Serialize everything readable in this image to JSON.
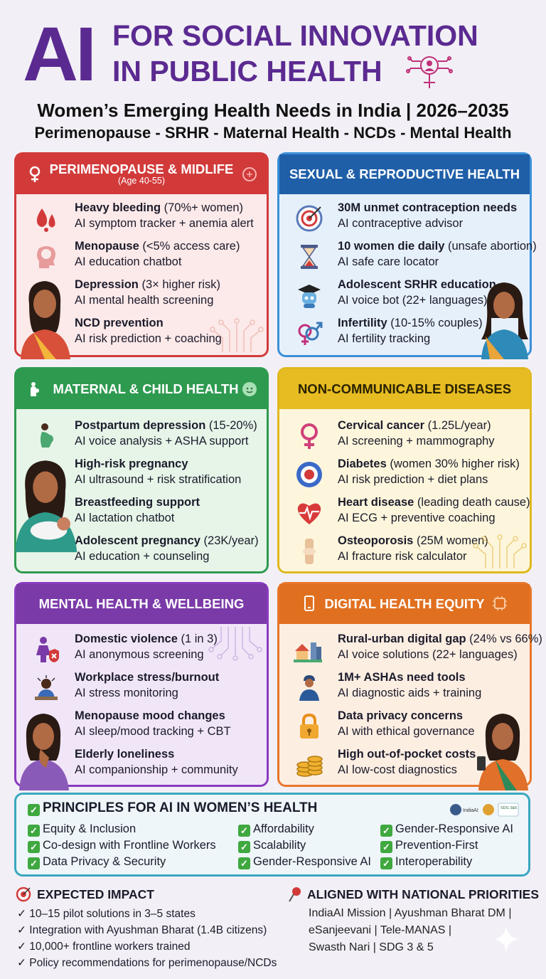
{
  "header": {
    "ai": "AI",
    "line1": "FOR SOCIAL INNOVATION",
    "line2": "IN PUBLIC HEALTH",
    "subtitle": "Women’s Emerging Health Needs in India | 2026–2035",
    "topics": "Perimenopause - SRHR - Maternal Health - NCDs - Mental Health"
  },
  "colors": {
    "purple": "#5b2a91",
    "red": "#d23a3a",
    "blue": "#1f5fa8",
    "green": "#2e9a50",
    "yellow": "#e0b81e",
    "violet": "#7a3aa8",
    "orange": "#e07020",
    "teal": "#3aa7bf"
  },
  "cards": {
    "perimenopause": {
      "title": "PERIMENOPAUSE & MIDLIFE",
      "subtitle": "(Age 40-55)",
      "items": [
        {
          "icon": "blood-drops-icon",
          "bold": "Heavy bleeding",
          "rest": " (70%+ women)",
          "ai": "AI symptom tracker + anemia alert"
        },
        {
          "icon": "head-brain-icon",
          "bold": "Menopause",
          "rest": " (<5% access care)",
          "ai": "AI education chatbot"
        },
        {
          "icon": "woman-icon",
          "bold": "Depression",
          "rest": " (3× higher risk)",
          "ai": "AI mental health screening"
        },
        {
          "icon": "woman-icon",
          "bold": "NCD prevention",
          "rest": "",
          "ai": "AI risk prediction + coaching"
        }
      ]
    },
    "srh": {
      "title": "SEXUAL & REPRODUCTIVE HEALTH",
      "items": [
        {
          "icon": "target-icon",
          "bold": "30M unmet contraception needs",
          "rest": "",
          "ai": "AI contraceptive advisor"
        },
        {
          "icon": "hourglass-icon",
          "bold": "10 women die daily",
          "rest": " (unsafe abortion)",
          "ai": "AI safe care locator"
        },
        {
          "icon": "graduate-robot-icon",
          "bold": "Adolescent SRHR education",
          "rest": "",
          "ai": "AI voice bot (22+ languages)"
        },
        {
          "icon": "gender-symbols-icon",
          "bold": "Infertility",
          "rest": " (10-15% couples)",
          "ai": "AI fertility tracking"
        }
      ]
    },
    "maternal": {
      "title": "MATERNAL & CHILD HEALTH",
      "items": [
        {
          "icon": "pregnant-woman-icon",
          "bold": "Postpartum depression",
          "rest": " (15-20%)",
          "ai": "AI voice analysis + ASHA support"
        },
        {
          "icon": "mother-child-icon",
          "bold": "High-risk pregnancy",
          "rest": "",
          "ai": "AI ultrasound + risk stratification"
        },
        {
          "icon": "mother-child-icon",
          "bold": "Breastfeeding support",
          "rest": "",
          "ai": "AI lactation chatbot"
        },
        {
          "icon": "mother-child-icon",
          "bold": "Adolescent pregnancy",
          "rest": " (23K/year)",
          "ai": "AI education + counseling"
        }
      ]
    },
    "ncd": {
      "title": "NON-COMMUNICABLE DISEASES",
      "items": [
        {
          "icon": "female-symbol-icon",
          "bold": "Cervical cancer",
          "rest": " (1.25L/year)",
          "ai": "AI screening + mammography"
        },
        {
          "icon": "diabetes-icon",
          "bold": "Diabetes",
          "rest": " (women 30% higher risk)",
          "ai": "AI risk prediction + diet plans"
        },
        {
          "icon": "heart-ecg-icon",
          "bold": "Heart disease",
          "rest": " (leading death cause)",
          "ai": "AI ECG + preventive coaching"
        },
        {
          "icon": "knee-bone-icon",
          "bold": "Osteoporosis",
          "rest": " (25M women)",
          "ai": "AI fracture risk calculator"
        }
      ]
    },
    "mental": {
      "title": "MENTAL HEALTH & WELLBEING",
      "items": [
        {
          "icon": "woman-shield-icon",
          "bold": "Domestic violence",
          "rest": " (1 in 3)",
          "ai": "AI anonymous screening"
        },
        {
          "icon": "stressed-worker-icon",
          "bold": "Workplace stress/burnout",
          "rest": "",
          "ai": "AI stress monitoring"
        },
        {
          "icon": "thinking-woman-icon",
          "bold": "Menopause mood changes",
          "rest": "",
          "ai": "AI sleep/mood tracking + CBT"
        },
        {
          "icon": "thinking-woman-icon",
          "bold": "Elderly loneliness",
          "rest": "",
          "ai": "AI companionship + community"
        }
      ]
    },
    "digital": {
      "title": "DIGITAL HEALTH EQUITY",
      "items": [
        {
          "icon": "village-city-icon",
          "bold": "Rural-urban digital gap",
          "rest": " (24% vs 66%)",
          "ai": "AI voice solutions (22+ languages)"
        },
        {
          "icon": "health-worker-icon",
          "bold": "1M+ ASHAs need tools",
          "rest": "",
          "ai": "AI diagnostic aids + training"
        },
        {
          "icon": "padlock-icon",
          "bold": "Data privacy concerns",
          "rest": "",
          "ai": "AI with ethical governance"
        },
        {
          "icon": "coins-icon",
          "bold": "High out-of-pocket costs",
          "rest": "",
          "ai": "AI low-cost diagnostics"
        }
      ]
    }
  },
  "principles": {
    "title": "PRINCIPLES FOR AI IN WOMEN’S HEALTH",
    "logo_labels": [
      "IndiaAI",
      "SDG 3&5"
    ],
    "col1": [
      "Equity & Inclusion",
      "Co-design with Frontline Workers",
      "Data Privacy & Security"
    ],
    "col2": [
      "Affordability",
      "Scalability",
      "Gender-Responsive AI"
    ],
    "col3": [
      "Gender-Responsive AI",
      "Prevention-First",
      "Interoperability"
    ]
  },
  "impact": {
    "title": "EXPECTED IMPACT",
    "items": [
      "10–15 pilot solutions in 3–5 states",
      "Integration with Ayushman Bharat (1.4B citizens)",
      "10,000+ frontline workers trained",
      "Policy recommendations for perimenopause/NCDs"
    ]
  },
  "aligned": {
    "title": "ALIGNED WITH NATIONAL PRIORITIES",
    "lines": [
      "IndiaAI Mission | Ayushman Bharat DM |",
      "eSanjeevani | Tele-MANAS |",
      "Swasth Nari | SDG 3 & 5"
    ]
  }
}
